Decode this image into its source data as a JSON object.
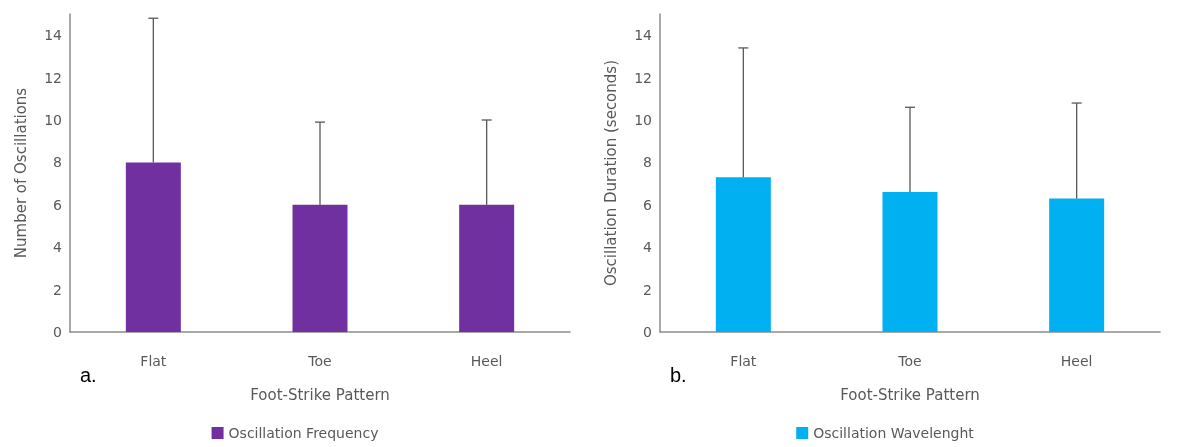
{
  "chart_data": [
    {
      "type": "bar",
      "categories": [
        "Flat",
        "Toe",
        "Heel"
      ],
      "xlabel": "Foot-Strike Pattern",
      "ylabel": "Number of Oscillations",
      "series": [
        {
          "name": "Oscillation Frequency",
          "color": "#7030a0",
          "values": [
            8,
            6,
            6
          ],
          "errors": [
            [
              8,
              14.8
            ],
            [
              6,
              9.9
            ],
            [
              6,
              10
            ]
          ]
        }
      ],
      "ylim": [
        0,
        15
      ],
      "yticks": [
        0,
        2,
        4,
        6,
        8,
        10,
        12,
        14
      ],
      "grid": false,
      "legend": "bottom",
      "annotations": [
        "a."
      ]
    },
    {
      "type": "bar",
      "categories": [
        "Flat",
        "Toe",
        "Heel"
      ],
      "xlabel": "Foot-Strike Pattern",
      "ylabel": "Oscillation Duration (seconds)",
      "series": [
        {
          "name": "Oscillation Wavelenght",
          "color": "#00b0f0",
          "values": [
            7.3,
            6.6,
            6.3
          ],
          "errors": [
            [
              7.3,
              13.4
            ],
            [
              6.6,
              10.6
            ],
            [
              6.3,
              10.8
            ]
          ]
        }
      ],
      "ylim": [
        0,
        15
      ],
      "yticks": [
        0,
        2,
        4,
        6,
        8,
        10,
        12,
        14
      ],
      "grid": false,
      "legend": "bottom",
      "annotations": [
        "b."
      ]
    }
  ]
}
